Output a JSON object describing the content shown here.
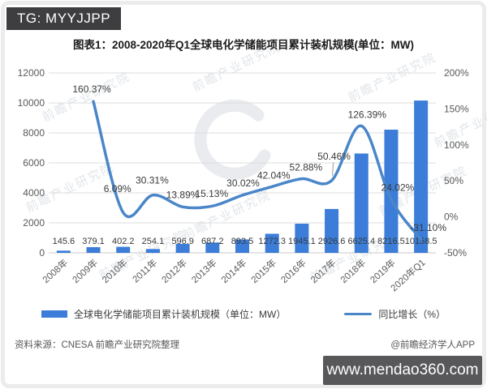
{
  "badge": {
    "text": "TG: MYYJJPP"
  },
  "title": "图表1：2008-2020年Q1全球电化学储能项目累计装机规模(单位：MW)",
  "chart_data": {
    "type": "bar",
    "subtype": "bar+line combo with dual y-axes",
    "title": "图表1：2008-2020年Q1全球电化学储能项目累计装机规模(单位：MW)",
    "categories": [
      "2008年",
      "2009年",
      "2010年",
      "2011年",
      "2012年",
      "2013年",
      "2014年",
      "2015年",
      "2016年",
      "2017年",
      "2018年",
      "2019年",
      "2020年Q1"
    ],
    "series": [
      {
        "name": "全球电化学储能项目累计装机规模（单位：MW）",
        "type": "bar",
        "axis": "left",
        "color": "#3B7DD8",
        "values": [
          145.6,
          379.1,
          402.2,
          254.1,
          596.9,
          687.2,
          893.5,
          1272.3,
          1945.1,
          2926.6,
          6625.4,
          8216.5,
          10158.5
        ],
        "labels": [
          "145.6",
          "379.1",
          "402.2",
          "254.1",
          "596.9",
          "687.2",
          "893.5",
          "1272.3",
          "1945.1",
          "2926.6",
          "6625.4",
          "8216.5",
          "10158.5"
        ]
      },
      {
        "name": "同比增长（%）",
        "type": "line",
        "axis": "right",
        "color": "#4A86C8",
        "values": [
          null,
          160.37,
          6.09,
          30.31,
          13.89,
          15.13,
          30.02,
          42.04,
          52.88,
          50.46,
          126.39,
          24.02,
          -31.1
        ],
        "labels": [
          "160.37%",
          "6.09%",
          "30.31%",
          "13.89%",
          "15.13%",
          "30.02%",
          "42.04%",
          "52.88%",
          "50.46%",
          "126.39%",
          "24.02%",
          "-31.10%"
        ]
      }
    ],
    "left_axis": {
      "min": 0,
      "max": 12000,
      "step": 2000,
      "ticks": [
        0,
        2000,
        4000,
        6000,
        8000,
        10000,
        12000
      ]
    },
    "right_axis": {
      "min": -50,
      "max": 200,
      "step": 50,
      "ticks": [
        -50,
        0,
        50,
        100,
        150,
        200
      ],
      "format": "percent"
    },
    "grid": true,
    "legend_position": "bottom"
  },
  "watermark": {
    "text": "前瞻产业研究院"
  },
  "footer": {
    "source": "资料来源：CNESA 前瞻产业研究院整理",
    "credit": "@前瞻经济学人APP"
  },
  "footer_badge": {
    "text": "www.mendao360.com"
  }
}
